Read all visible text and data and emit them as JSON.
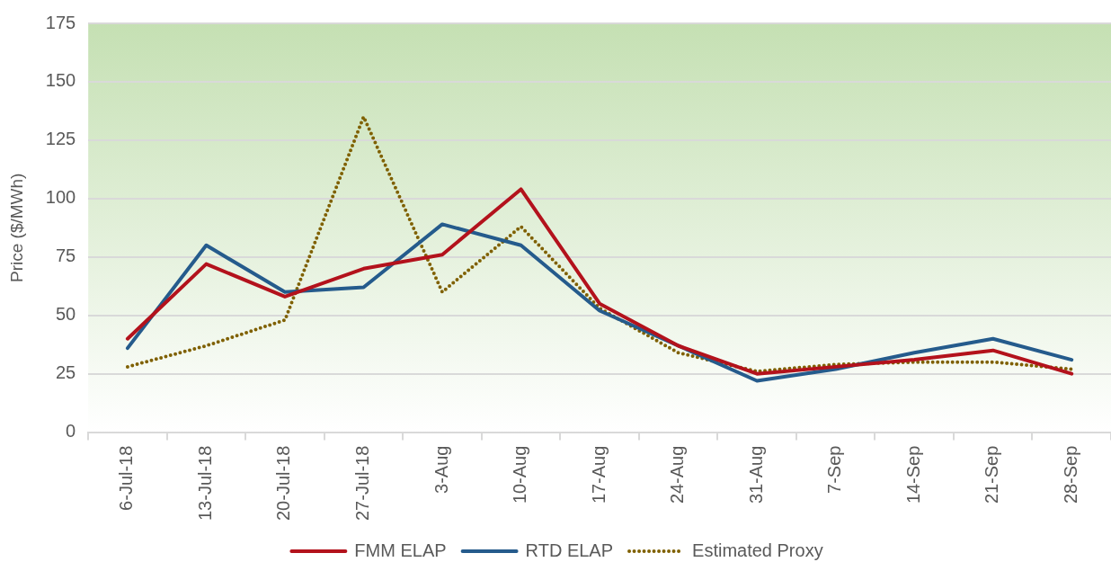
{
  "chart_data": {
    "type": "line",
    "ylabel": "Price ($/MWh)",
    "categories": [
      "6-Jul-18",
      "13-Jul-18",
      "20-Jul-18",
      "27-Jul-18",
      "3-Aug",
      "10-Aug",
      "17-Aug",
      "24-Aug",
      "31-Aug",
      "7-Sep",
      "14-Sep",
      "21-Sep",
      "28-Sep"
    ],
    "series": [
      {
        "name": "FMM ELAP",
        "color": "#b3121c",
        "values": [
          40,
          72,
          58,
          70,
          76,
          104,
          55,
          37,
          25,
          28,
          31,
          35,
          25
        ]
      },
      {
        "name": "RTD ELAP",
        "color": "#255b8c",
        "values": [
          36,
          80,
          60,
          62,
          89,
          80,
          52,
          37,
          22,
          27,
          34,
          40,
          31
        ]
      },
      {
        "name": "Estimated Proxy",
        "color": "#7f6000",
        "line_style": "dotted",
        "values": [
          28,
          37,
          48,
          135,
          60,
          88,
          53,
          34,
          26,
          29,
          30,
          30,
          27
        ]
      }
    ],
    "ylim": [
      0,
      175
    ],
    "yticks": [
      0,
      25,
      50,
      75,
      100,
      125,
      150,
      175
    ],
    "grid": "y",
    "legend": "bottom",
    "marker": "none",
    "line_style": "solid"
  }
}
